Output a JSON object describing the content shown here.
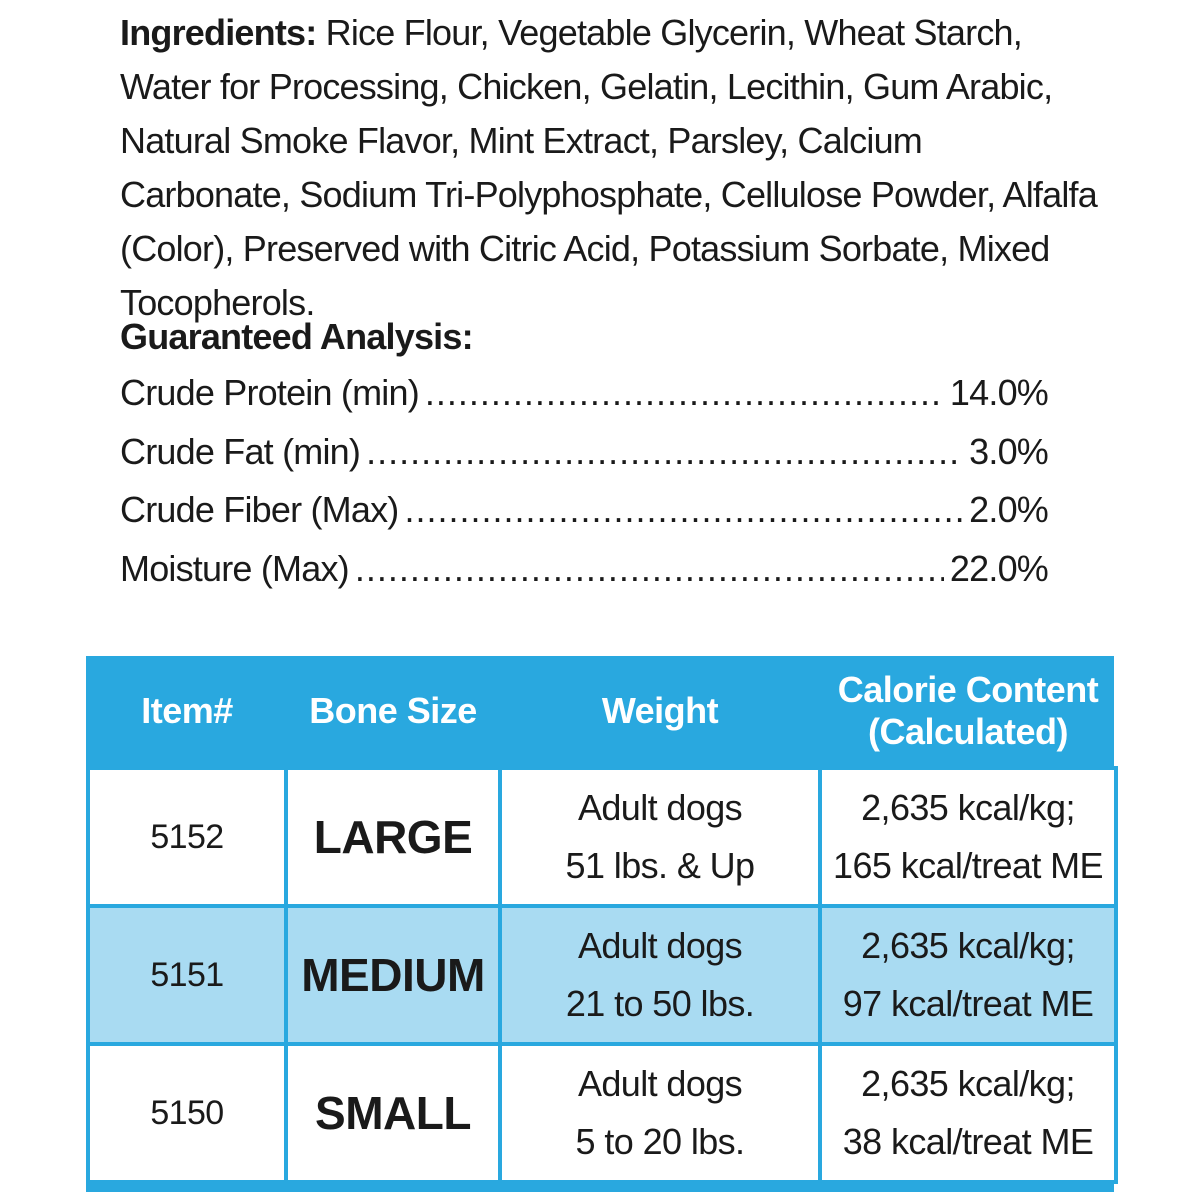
{
  "ingredients": {
    "label": "Ingredients:",
    "text": "Rice Flour, Vegetable Glycerin, Wheat Starch, Water for Processing, Chicken, Gelatin, Lecithin, Gum Arabic, Natural Smoke Flavor, Mint Extract, Parsley, Calcium Carbonate, Sodium Tri-Polyphosphate, Cellulose Powder, Alfalfa (Color), Preserved with Citric Acid, Potassium Sorbate, Mixed Tocopherols."
  },
  "analysis": {
    "title": "Guaranteed Analysis:",
    "rows": [
      {
        "name": "Crude Protein (min)",
        "value": "14.0%"
      },
      {
        "name": "Crude Fat (min)",
        "value": "3.0%"
      },
      {
        "name": "Crude Fiber (Max)",
        "value": "2.0%"
      },
      {
        "name": "Moisture (Max)",
        "value": "22.0%"
      }
    ]
  },
  "table": {
    "headers": {
      "item": "Item#",
      "bone_size": "Bone Size",
      "weight": "Weight",
      "calorie_line1": "Calorie Content",
      "calorie_line2": "(Calculated)"
    },
    "rows": [
      {
        "item": "5152",
        "size": "LARGE",
        "weight_line1": "Adult dogs",
        "weight_line2": "51 lbs. & Up",
        "cal_line1": "2,635 kcal/kg;",
        "cal_line2": "165 kcal/treat ME"
      },
      {
        "item": "5151",
        "size": "MEDIUM",
        "weight_line1": "Adult dogs",
        "weight_line2": "21 to 50 lbs.",
        "cal_line1": "2,635 kcal/kg;",
        "cal_line2": "97 kcal/treat ME"
      },
      {
        "item": "5150",
        "size": "SMALL",
        "weight_line1": "Adult dogs",
        "weight_line2": "5 to 20 lbs.",
        "cal_line1": "2,635 kcal/kg;",
        "cal_line2": "38 kcal/treat ME"
      }
    ]
  },
  "colors": {
    "header_blue": "#29a8df",
    "row_light_blue": "#a9dbf2"
  }
}
